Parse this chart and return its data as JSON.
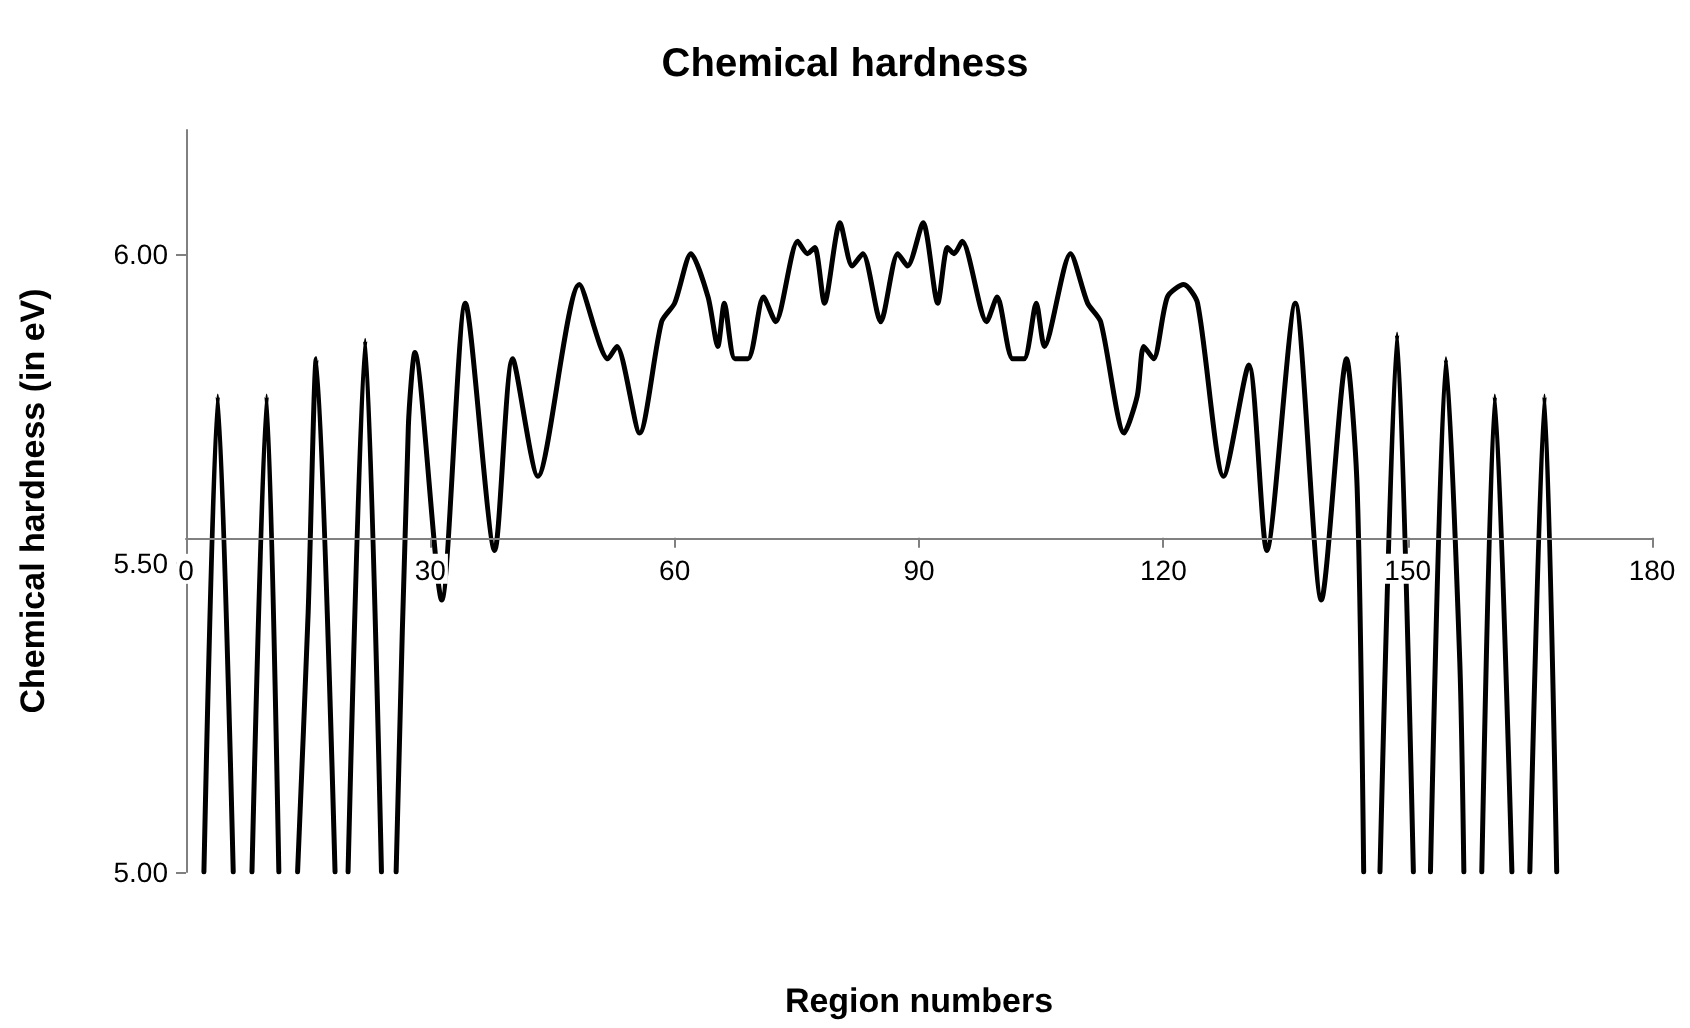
{
  "chart_data": {
    "type": "line",
    "title": "Chemical hardness",
    "xlabel": "Region numbers",
    "ylabel": "Chemical hardness (in eV)",
    "x": [
      2.2,
      3.9,
      5.8,
      7.0,
      8.1,
      9.9,
      11.4,
      12.5,
      13.7,
      15.0,
      16.0,
      18.3,
      19.1,
      19.9,
      22.0,
      24.0,
      24.9,
      25.8,
      27.3,
      28.1,
      31.4,
      34.3,
      37.9,
      40.1,
      43.2,
      48.3,
      51.8,
      52.9,
      55.7,
      58.4,
      60.0,
      62.0,
      64.1,
      65.3,
      66.1,
      67.4,
      69.0,
      70.9,
      72.4,
      75.1,
      76.3,
      77.2,
      78.4,
      80.3,
      81.8,
      83.1,
      85.3,
      87.4,
      88.6,
      90.5,
      92.3,
      93.5,
      94.3,
      95.3,
      98.3,
      99.6,
      101.5,
      102.9,
      104.4,
      105.4,
      108.6,
      110.7,
      112.3,
      115.2,
      116.8,
      117.6,
      118.8,
      120.5,
      122.5,
      124.2,
      127.4,
      130.5,
      132.7,
      136.2,
      139.4,
      142.5,
      143.8,
      144.6,
      145.6,
      146.6,
      148.7,
      150.7,
      151.8,
      152.8,
      154.7,
      156.4,
      156.9,
      158.0,
      159.1,
      160.7,
      162.8,
      163.9,
      165.0,
      166.8,
      168.3
    ],
    "values": [
      5.0,
      5.77,
      5.0,
      null,
      5.0,
      5.77,
      5.0,
      null,
      5.0,
      5.42,
      5.83,
      5.0,
      null,
      5.0,
      5.86,
      5.0,
      null,
      5.0,
      5.72,
      5.84,
      5.44,
      5.92,
      5.52,
      5.83,
      5.64,
      5.95,
      5.83,
      5.85,
      5.71,
      5.89,
      5.92,
      6.0,
      5.93,
      5.85,
      5.92,
      5.83,
      5.83,
      5.93,
      5.89,
      6.02,
      6.0,
      6.01,
      5.92,
      6.05,
      5.98,
      6.0,
      5.89,
      6.0,
      5.98,
      6.05,
      5.92,
      6.01,
      6.0,
      6.02,
      5.89,
      5.93,
      5.83,
      5.83,
      5.92,
      5.85,
      6.0,
      5.92,
      5.89,
      5.71,
      5.77,
      5.85,
      5.83,
      5.93,
      5.95,
      5.92,
      5.64,
      5.82,
      5.52,
      5.92,
      5.44,
      5.83,
      5.62,
      5.0,
      null,
      5.0,
      5.87,
      5.0,
      null,
      5.0,
      5.83,
      5.34,
      5.0,
      null,
      5.0,
      5.77,
      5.0,
      null,
      5.0,
      5.77,
      5.0
    ],
    "color": "#000000",
    "marker": "none",
    "line_style": "solid",
    "grid": false,
    "xlim": [
      0,
      180
    ],
    "xticks": [
      0,
      30,
      60,
      90,
      120,
      150,
      180
    ],
    "ylim": [
      5,
      6.2
    ],
    "yticks": [
      {
        "value": 5,
        "label": "5.00"
      },
      {
        "value": 5.5,
        "label": "5.50"
      },
      {
        "value": 6,
        "label": "6.00"
      }
    ]
  }
}
